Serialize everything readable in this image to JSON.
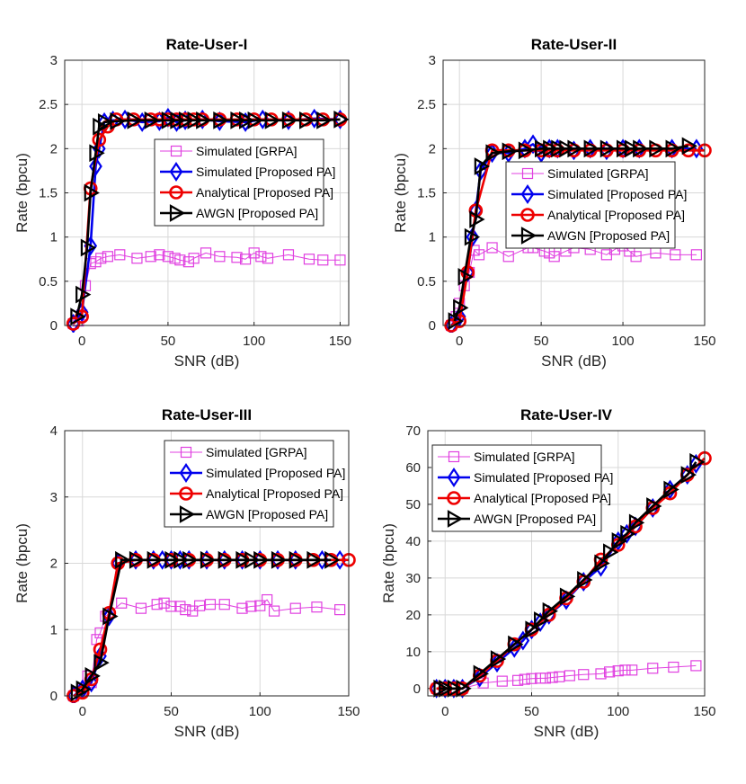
{
  "colors": {
    "grpa": "#e040e0",
    "sim_pa": "#0000ee",
    "ana_pa": "#ee0000",
    "awgn": "#000000",
    "grid": "#d8d8d8"
  },
  "chart_data": [
    {
      "type": "line",
      "title": "Rate-User-I",
      "xlabel": "SNR (dB)",
      "ylabel": "Rate (bpcu)",
      "xlim": [
        -10,
        155
      ],
      "ylim": [
        0,
        3
      ],
      "xticks": [
        0,
        50,
        100,
        150
      ],
      "yticks": [
        0,
        0.5,
        1,
        1.5,
        2,
        2.5,
        3
      ],
      "ytick_labels": [
        "0",
        "0.5",
        "1",
        "1.5",
        "2",
        "2.5",
        "3"
      ],
      "legend_pos": "center-right",
      "series": [
        {
          "name": "Simulated [GRPA]",
          "marker": "square",
          "color_key": "grpa",
          "x": [
            -5,
            -2,
            0,
            2,
            5,
            8,
            11,
            15,
            22,
            32,
            40,
            45,
            50,
            54,
            57,
            62,
            65,
            72,
            80,
            90,
            95,
            100,
            104,
            108,
            120,
            132,
            140,
            150
          ],
          "y": [
            0.02,
            0.05,
            0.12,
            0.45,
            0.7,
            0.72,
            0.76,
            0.78,
            0.8,
            0.76,
            0.78,
            0.8,
            0.78,
            0.76,
            0.74,
            0.72,
            0.76,
            0.82,
            0.78,
            0.77,
            0.75,
            0.82,
            0.78,
            0.76,
            0.8,
            0.75,
            0.74,
            0.74
          ]
        },
        {
          "name": "Simulated [Proposed PA]",
          "marker": "diamond",
          "color_key": "sim_pa",
          "x": [
            -5,
            0,
            5,
            8,
            10,
            13,
            18,
            25,
            35,
            45,
            50,
            55,
            60,
            70,
            80,
            95,
            105,
            120,
            135,
            150
          ],
          "y": [
            0.02,
            0.15,
            0.9,
            1.8,
            2.0,
            2.3,
            2.32,
            2.33,
            2.3,
            2.31,
            2.35,
            2.3,
            2.32,
            2.33,
            2.31,
            2.3,
            2.33,
            2.32,
            2.34,
            2.33
          ]
        },
        {
          "name": "Analytical [Proposed PA]",
          "marker": "circle",
          "color_key": "ana_pa",
          "x": [
            -5,
            0,
            5,
            10,
            15,
            20,
            30,
            40,
            45,
            50,
            55,
            60,
            65,
            70,
            80,
            90,
            100,
            110,
            120,
            130,
            140,
            150
          ],
          "y": [
            0.02,
            0.1,
            1.55,
            2.1,
            2.25,
            2.33,
            2.33,
            2.33,
            2.33,
            2.33,
            2.33,
            2.33,
            2.33,
            2.33,
            2.33,
            2.33,
            2.33,
            2.33,
            2.33,
            2.33,
            2.33,
            2.33
          ]
        },
        {
          "name": "AWGN [Proposed PA]",
          "marker": "triangle-right",
          "color_key": "awgn",
          "x": [
            -3,
            0,
            3,
            5,
            8,
            10,
            13,
            20,
            30,
            40,
            50,
            55,
            60,
            65,
            70,
            80,
            90,
            95,
            100,
            110,
            120,
            130,
            140,
            150
          ],
          "y": [
            0.1,
            0.35,
            0.88,
            1.5,
            1.95,
            2.25,
            2.3,
            2.31,
            2.32,
            2.32,
            2.32,
            2.32,
            2.32,
            2.32,
            2.32,
            2.32,
            2.32,
            2.32,
            2.32,
            2.32,
            2.32,
            2.32,
            2.32,
            2.33
          ]
        }
      ]
    },
    {
      "type": "line",
      "title": "Rate-User-II",
      "xlabel": "SNR (dB)",
      "ylabel": "Rate (bpcu)",
      "xlim": [
        -10,
        150
      ],
      "ylim": [
        0,
        3
      ],
      "xticks": [
        0,
        50,
        100,
        150
      ],
      "yticks": [
        0,
        0.5,
        1,
        1.5,
        2,
        2.5,
        3
      ],
      "ytick_labels": [
        "0",
        "0.5",
        "1",
        "1.5",
        "2",
        "2.5",
        "3"
      ],
      "legend_pos": "center-right",
      "series": [
        {
          "name": "Simulated [GRPA]",
          "marker": "square",
          "color_key": "grpa",
          "x": [
            -5,
            -2,
            0,
            3,
            6,
            9,
            12,
            20,
            30,
            42,
            45,
            52,
            55,
            58,
            65,
            70,
            80,
            90,
            95,
            100,
            104,
            108,
            120,
            132,
            145
          ],
          "y": [
            0.0,
            0.1,
            0.25,
            0.45,
            0.6,
            0.85,
            0.8,
            0.88,
            0.78,
            0.88,
            0.88,
            0.84,
            0.82,
            0.78,
            0.84,
            0.88,
            0.86,
            0.8,
            0.86,
            0.9,
            0.84,
            0.78,
            0.82,
            0.8,
            0.8
          ]
        },
        {
          "name": "Simulated [Proposed PA]",
          "marker": "diamond",
          "color_key": "sim_pa",
          "x": [
            -5,
            0,
            5,
            8,
            10,
            13,
            20,
            30,
            40,
            45,
            50,
            55,
            60,
            70,
            80,
            90,
            100,
            110,
            130,
            145
          ],
          "y": [
            0.0,
            0.1,
            0.6,
            1.0,
            1.3,
            1.75,
            1.95,
            1.95,
            2.0,
            2.05,
            1.95,
            2.0,
            2.0,
            1.98,
            2.0,
            1.98,
            2.0,
            2.0,
            2.0,
            2.0
          ]
        },
        {
          "name": "Analytical [Proposed PA]",
          "marker": "circle",
          "color_key": "ana_pa",
          "x": [
            -5,
            0,
            5,
            10,
            20,
            30,
            40,
            50,
            55,
            60,
            70,
            80,
            90,
            100,
            110,
            120,
            130,
            140,
            150
          ],
          "y": [
            0.0,
            0.05,
            0.6,
            1.3,
            1.98,
            1.98,
            1.98,
            1.98,
            1.98,
            1.98,
            1.98,
            1.98,
            1.98,
            1.98,
            1.98,
            1.98,
            1.98,
            1.98,
            1.98
          ]
        },
        {
          "name": "AWGN [Proposed PA]",
          "marker": "triangle-right",
          "color_key": "awgn",
          "x": [
            -3,
            0,
            3,
            7,
            10,
            13,
            20,
            30,
            40,
            50,
            55,
            60,
            65,
            70,
            80,
            90,
            100,
            105,
            110,
            120,
            130,
            140
          ],
          "y": [
            0.05,
            0.2,
            0.55,
            1.0,
            1.2,
            1.8,
            1.95,
            1.97,
            1.98,
            2.0,
            2.0,
            2.0,
            2.0,
            2.0,
            2.0,
            2.0,
            2.0,
            2.0,
            2.0,
            2.0,
            2.0,
            2.03
          ]
        }
      ]
    },
    {
      "type": "line",
      "title": "Rate-User-III",
      "xlabel": "SNR (dB)",
      "ylabel": "Rate (bpcu)",
      "xlim": [
        -10,
        150
      ],
      "ylim": [
        0,
        4
      ],
      "xticks": [
        0,
        50,
        100,
        150
      ],
      "yticks": [
        0,
        1,
        2,
        3,
        4
      ],
      "ytick_labels": [
        "0",
        "1",
        "2",
        "3",
        "4"
      ],
      "legend_pos": "top-right",
      "series": [
        {
          "name": "Simulated [GRPA]",
          "marker": "square",
          "color_key": "grpa",
          "x": [
            -5,
            0,
            3,
            5,
            8,
            10,
            13,
            22,
            33,
            42,
            46,
            50,
            55,
            58,
            62,
            66,
            72,
            80,
            90,
            95,
            100,
            104,
            108,
            120,
            132,
            145
          ],
          "y": [
            0.0,
            0.1,
            0.3,
            0.2,
            0.85,
            0.95,
            1.2,
            1.4,
            1.32,
            1.38,
            1.4,
            1.35,
            1.35,
            1.3,
            1.28,
            1.36,
            1.38,
            1.38,
            1.32,
            1.35,
            1.36,
            1.45,
            1.28,
            1.32,
            1.34,
            1.3
          ]
        },
        {
          "name": "Simulated [Proposed PA]",
          "marker": "diamond",
          "color_key": "sim_pa",
          "x": [
            -5,
            0,
            5,
            10,
            15,
            20,
            30,
            40,
            45,
            50,
            55,
            60,
            70,
            80,
            90,
            100,
            110,
            120,
            135,
            145
          ],
          "y": [
            0.0,
            0.1,
            0.2,
            0.6,
            1.2,
            2.0,
            2.05,
            2.05,
            2.05,
            2.05,
            2.05,
            2.05,
            2.05,
            2.05,
            2.05,
            2.05,
            2.05,
            2.05,
            2.05,
            2.05
          ]
        },
        {
          "name": "Analytical [Proposed PA]",
          "marker": "circle",
          "color_key": "ana_pa",
          "x": [
            -5,
            0,
            5,
            10,
            15,
            20,
            30,
            40,
            50,
            60,
            70,
            80,
            90,
            100,
            110,
            120,
            130,
            140,
            150
          ],
          "y": [
            0.0,
            0.05,
            0.25,
            0.7,
            1.25,
            2.0,
            2.05,
            2.05,
            2.05,
            2.05,
            2.05,
            2.05,
            2.05,
            2.05,
            2.05,
            2.05,
            2.05,
            2.05,
            2.05
          ]
        },
        {
          "name": "AWGN [Proposed PA]",
          "marker": "triangle-right",
          "color_key": "awgn",
          "x": [
            -3,
            0,
            5,
            10,
            15,
            22,
            30,
            40,
            50,
            55,
            60,
            70,
            80,
            90,
            95,
            100,
            110,
            120,
            130,
            140
          ],
          "y": [
            0.05,
            0.1,
            0.3,
            0.5,
            1.2,
            2.05,
            2.05,
            2.05,
            2.05,
            2.05,
            2.05,
            2.05,
            2.05,
            2.05,
            2.05,
            2.05,
            2.05,
            2.05,
            2.05,
            2.05
          ]
        }
      ]
    },
    {
      "type": "line",
      "title": "Rate-User-IV",
      "xlabel": "SNR (dB)",
      "ylabel": "Rate (bpcu)",
      "xlim": [
        -10,
        150
      ],
      "ylim": [
        -2,
        70
      ],
      "xticks": [
        0,
        50,
        100,
        150
      ],
      "yticks": [
        0,
        10,
        20,
        30,
        40,
        50,
        60,
        70
      ],
      "ytick_labels": [
        "0",
        "10",
        "20",
        "30",
        "40",
        "50",
        "60",
        "70"
      ],
      "legend_pos": "top-left",
      "series": [
        {
          "name": "Simulated [GRPA]",
          "marker": "square",
          "color_key": "grpa",
          "x": [
            -5,
            0,
            5,
            10,
            22,
            33,
            42,
            46,
            50,
            55,
            58,
            62,
            66,
            72,
            80,
            90,
            95,
            100,
            104,
            108,
            120,
            132,
            145
          ],
          "y": [
            0.0,
            0.0,
            0.0,
            0.0,
            1.5,
            2.0,
            2.2,
            2.5,
            2.7,
            2.8,
            2.8,
            3.0,
            3.2,
            3.5,
            3.8,
            4.0,
            4.5,
            4.8,
            5.0,
            5.0,
            5.5,
            5.8,
            6.2
          ]
        },
        {
          "name": "Simulated [Proposed PA]",
          "marker": "diamond",
          "color_key": "sim_pa",
          "x": [
            -5,
            0,
            5,
            10,
            20,
            30,
            40,
            45,
            50,
            55,
            60,
            70,
            80,
            90,
            100,
            105,
            110,
            120,
            130,
            140,
            145
          ],
          "y": [
            0.0,
            0.0,
            0.0,
            0.0,
            3.0,
            7.0,
            11.0,
            13.0,
            16.0,
            18.0,
            20.0,
            24.0,
            29.0,
            33.0,
            40.0,
            42.0,
            44.0,
            49.0,
            54.0,
            58.0,
            61.0
          ]
        },
        {
          "name": "Analytical [Proposed PA]",
          "marker": "circle",
          "color_key": "ana_pa",
          "x": [
            -5,
            0,
            5,
            10,
            20,
            30,
            40,
            50,
            60,
            70,
            80,
            90,
            100,
            110,
            120,
            130,
            140,
            150
          ],
          "y": [
            0.0,
            0.0,
            0.0,
            0.0,
            3.5,
            7.5,
            12.0,
            16.0,
            20.0,
            24.5,
            29.0,
            35.0,
            39.0,
            44.0,
            49.0,
            53.0,
            58.0,
            62.5
          ]
        },
        {
          "name": "AWGN [Proposed PA]",
          "marker": "triangle-right",
          "color_key": "awgn",
          "x": [
            -3,
            0,
            5,
            10,
            20,
            30,
            40,
            50,
            55,
            60,
            70,
            80,
            90,
            95,
            100,
            105,
            110,
            120,
            130,
            140,
            145
          ],
          "y": [
            0.0,
            0.0,
            0.0,
            0.0,
            4.0,
            8.0,
            12.0,
            16.0,
            18.5,
            21.0,
            25.0,
            29.5,
            34.0,
            37.0,
            40.0,
            42.0,
            45.0,
            49.5,
            54.0,
            58.0,
            61.5
          ]
        }
      ]
    }
  ]
}
